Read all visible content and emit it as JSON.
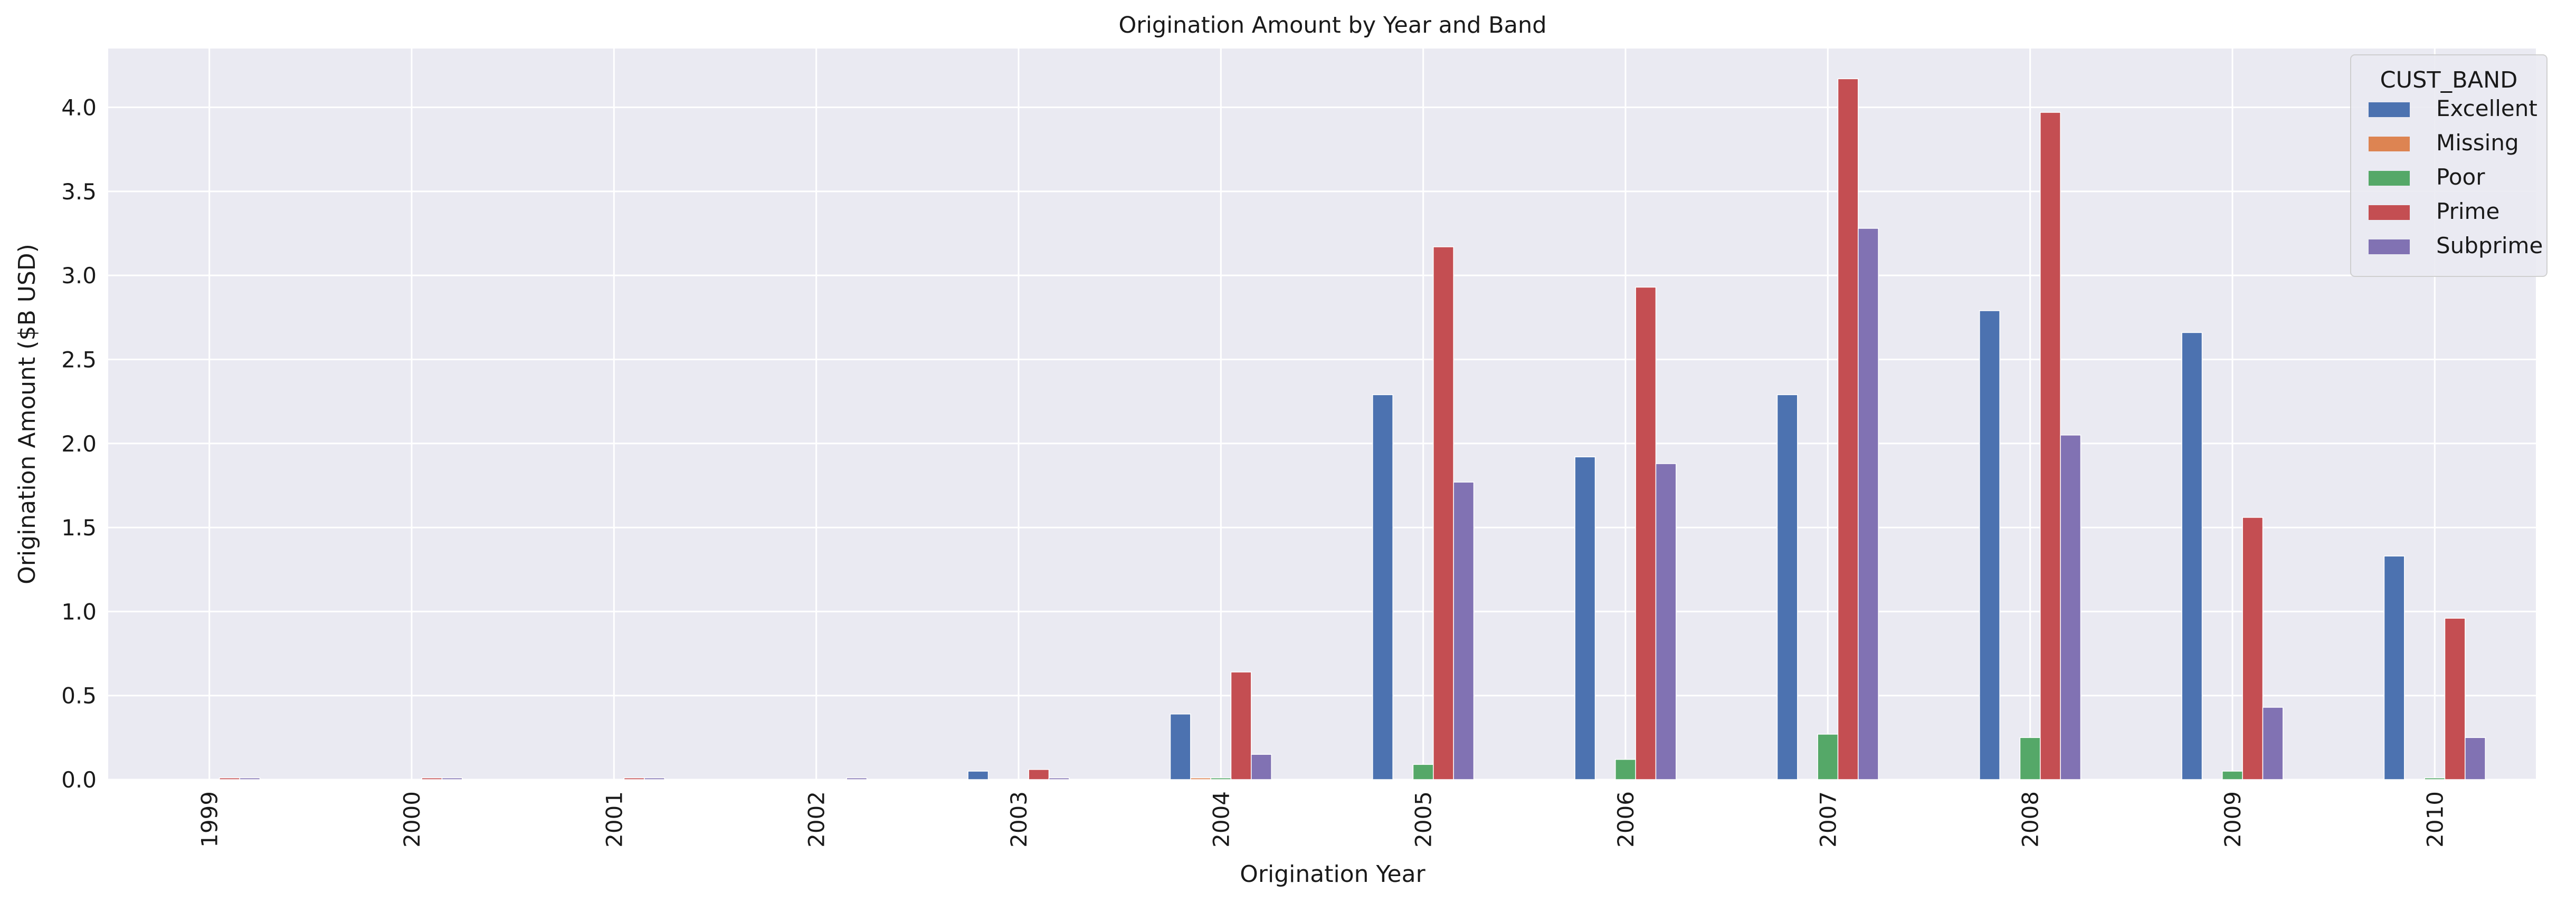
{
  "chart_data": {
    "type": "bar",
    "title": "Origination Amount by Year and Band",
    "xlabel": "Origination Year",
    "ylabel": "Origination Amount ($B USD)",
    "ylim": [
      0,
      4.35
    ],
    "yticks": [
      0.0,
      0.5,
      1.0,
      1.5,
      2.0,
      2.5,
      3.0,
      3.5,
      4.0
    ],
    "ytick_labels": [
      "0.0",
      "0.5",
      "1.0",
      "1.5",
      "2.0",
      "2.5",
      "3.0",
      "3.5",
      "4.0"
    ],
    "grid": true,
    "categories": [
      "1999",
      "2000",
      "2001",
      "2002",
      "2003",
      "2004",
      "2005",
      "2006",
      "2007",
      "2008",
      "2009",
      "2010"
    ],
    "legend": {
      "title": "CUST_BAND",
      "position": "top-right"
    },
    "series": [
      {
        "name": "Excellent",
        "color": "#4c72b0",
        "values": [
          0.0,
          0.0,
          0.0,
          0.0,
          0.05,
          0.39,
          2.29,
          1.92,
          2.29,
          2.79,
          2.66,
          1.33
        ]
      },
      {
        "name": "Missing",
        "color": "#dd8452",
        "values": [
          0.0,
          0.0,
          0.0,
          0.0,
          0.0,
          0.01,
          0.0,
          0.0,
          0.0,
          0.0,
          0.0,
          0.0
        ]
      },
      {
        "name": "Poor",
        "color": "#55a868",
        "values": [
          0.0,
          0.0,
          0.0,
          0.0,
          0.0,
          0.01,
          0.09,
          0.12,
          0.27,
          0.25,
          0.05,
          0.01
        ]
      },
      {
        "name": "Prime",
        "color": "#c44e52",
        "values": [
          0.01,
          0.01,
          0.01,
          0.0,
          0.06,
          0.64,
          3.17,
          2.93,
          4.17,
          3.97,
          1.56,
          0.96
        ]
      },
      {
        "name": "Subprime",
        "color": "#8172b3",
        "values": [
          0.01,
          0.01,
          0.01,
          0.01,
          0.01,
          0.15,
          1.77,
          1.88,
          3.28,
          2.05,
          0.43,
          0.25
        ]
      }
    ]
  }
}
